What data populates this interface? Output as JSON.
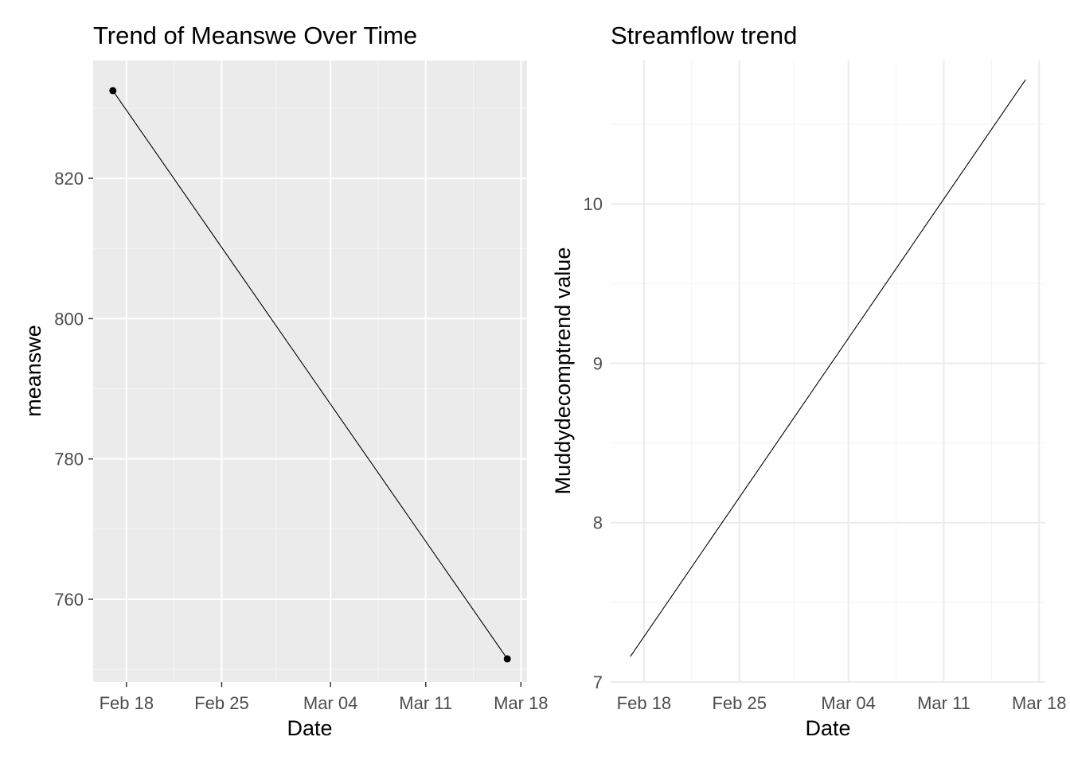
{
  "chart_data": [
    {
      "type": "line",
      "title": "Trend of Meanswe Over Time",
      "xlabel": "Date",
      "ylabel": "meanswe",
      "theme": "gray",
      "markers": true,
      "grid": true,
      "x_ticks": [
        "Feb 18",
        "Feb 25",
        "Mar 04",
        "Mar 11",
        "Mar 18"
      ],
      "y_ticks": [
        760,
        780,
        800,
        820
      ],
      "ylim": [
        748.2,
        836.8
      ],
      "series": [
        {
          "x": [
            "2024-02-17",
            "2024-03-17"
          ],
          "y": [
            832.5,
            751.5
          ],
          "color": "#000000"
        }
      ]
    },
    {
      "type": "line",
      "title": "Streamflow trend",
      "xlabel": "Date",
      "ylabel": "Muddydecomptrend value",
      "theme": "minimal",
      "markers": false,
      "grid": true,
      "x_ticks": [
        "Feb 18",
        "Feb 25",
        "Mar 04",
        "Mar 11",
        "Mar 18"
      ],
      "y_ticks": [
        7,
        8,
        9,
        10
      ],
      "ylim": [
        7.0,
        10.9
      ],
      "series": [
        {
          "x": [
            "2024-02-17",
            "2024-03-17"
          ],
          "y": [
            7.16,
            10.78
          ],
          "color": "#000000"
        }
      ]
    }
  ]
}
